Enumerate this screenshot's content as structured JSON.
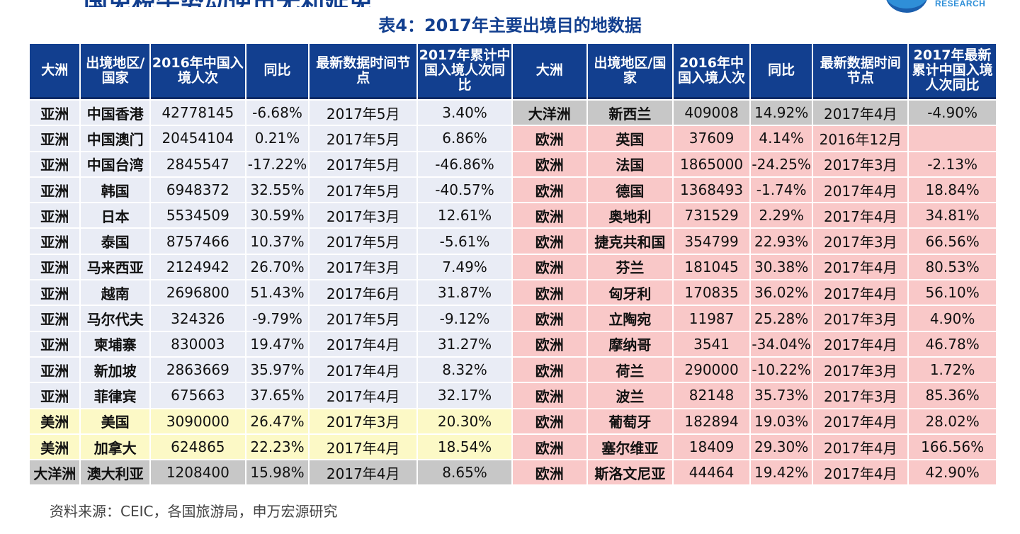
{
  "page": {
    "top_title": "国免税牛势动逆市无利延免",
    "logo_text": "RESEARCH",
    "table_title": "表4：2017年主要出境目的地数据",
    "source": "资料来源：CEIC，各国旅游局，申万宏源研究"
  },
  "headers": [
    "大洲",
    "出境地区/国家",
    "2016年中国入境人次",
    "同比",
    "最新数据时间节点",
    "2017年累计中国入境人次同比",
    "大洲",
    "出境地区/国家",
    "2016年中国入境人次",
    "同比",
    "最新数据时间节点",
    "2017年最新累计中国入境人次同比"
  ],
  "rows": [
    {
      "left": [
        "亚洲",
        "中国香港",
        "42778145",
        "-6.68%",
        "2017年5月",
        "3.40%"
      ],
      "right": [
        "大洋洲",
        "新西兰",
        "409008",
        "14.92%",
        "2017年4月",
        "-4.90%"
      ]
    },
    {
      "left": [
        "亚洲",
        "中国澳门",
        "20454104",
        "0.21%",
        "2017年5月",
        "6.86%"
      ],
      "right": [
        "欧洲",
        "英国",
        "37609",
        "4.14%",
        "2016年12月",
        ""
      ]
    },
    {
      "left": [
        "亚洲",
        "中国台湾",
        "2845547",
        "-17.22%",
        "2017年5月",
        "-46.86%"
      ],
      "right": [
        "欧洲",
        "法国",
        "1865000",
        "-24.25%",
        "2017年3月",
        "-2.13%"
      ]
    },
    {
      "left": [
        "亚洲",
        "韩国",
        "6948372",
        "32.55%",
        "2017年5月",
        "-40.57%"
      ],
      "right": [
        "欧洲",
        "德国",
        "1368493",
        "-1.74%",
        "2017年4月",
        "18.84%"
      ]
    },
    {
      "left": [
        "亚洲",
        "日本",
        "5534509",
        "30.59%",
        "2017年3月",
        "12.61%"
      ],
      "right": [
        "欧洲",
        "奥地利",
        "731529",
        "2.29%",
        "2017年4月",
        "34.81%"
      ]
    },
    {
      "left": [
        "亚洲",
        "泰国",
        "8757466",
        "10.37%",
        "2017年5月",
        "-5.61%"
      ],
      "right": [
        "欧洲",
        "捷克共和国",
        "354799",
        "22.93%",
        "2017年3月",
        "66.56%"
      ]
    },
    {
      "left": [
        "亚洲",
        "马来西亚",
        "2124942",
        "26.70%",
        "2017年3月",
        "7.49%"
      ],
      "right": [
        "欧洲",
        "芬兰",
        "181045",
        "30.38%",
        "2017年4月",
        "80.53%"
      ]
    },
    {
      "left": [
        "亚洲",
        "越南",
        "2696800",
        "51.43%",
        "2017年6月",
        "31.87%"
      ],
      "right": [
        "欧洲",
        "匈牙利",
        "170835",
        "36.02%",
        "2017年4月",
        "56.10%"
      ]
    },
    {
      "left": [
        "亚洲",
        "马尔代夫",
        "324326",
        "-9.79%",
        "2017年5月",
        "-9.12%"
      ],
      "right": [
        "欧洲",
        "立陶宛",
        "11987",
        "25.28%",
        "2017年3月",
        "4.90%"
      ]
    },
    {
      "left": [
        "亚洲",
        "柬埔寨",
        "830003",
        "19.47%",
        "2017年4月",
        "31.27%"
      ],
      "right": [
        "欧洲",
        "摩纳哥",
        "3541",
        "-34.04%",
        "2017年4月",
        "46.78%"
      ]
    },
    {
      "left": [
        "亚洲",
        "新加坡",
        "2863669",
        "35.97%",
        "2017年4月",
        "8.32%"
      ],
      "right": [
        "欧洲",
        "荷兰",
        "290000",
        "-10.22%",
        "2017年3月",
        "1.72%"
      ]
    },
    {
      "left": [
        "亚洲",
        "菲律宾",
        "675663",
        "37.65%",
        "2017年4月",
        "32.17%"
      ],
      "right": [
        "欧洲",
        "波兰",
        "82148",
        "35.73%",
        "2017年3月",
        "85.36%"
      ]
    },
    {
      "left": [
        "美洲",
        "美国",
        "3090000",
        "26.47%",
        "2017年3月",
        "20.30%"
      ],
      "right": [
        "欧洲",
        "葡萄牙",
        "182894",
        "19.03%",
        "2017年4月",
        "28.02%"
      ]
    },
    {
      "left": [
        "美洲",
        "加拿大",
        "624865",
        "22.23%",
        "2017年4月",
        "18.54%"
      ],
      "right": [
        "欧洲",
        "塞尔维亚",
        "18409",
        "29.30%",
        "2017年4月",
        "166.56%"
      ]
    },
    {
      "left": [
        "大洋洲",
        "澳大利亚",
        "1208400",
        "15.98%",
        "2017年4月",
        "8.65%"
      ],
      "right": [
        "欧洲",
        "斯洛文尼亚",
        "44464",
        "19.42%",
        "2017年4月",
        "42.90%"
      ]
    }
  ]
}
